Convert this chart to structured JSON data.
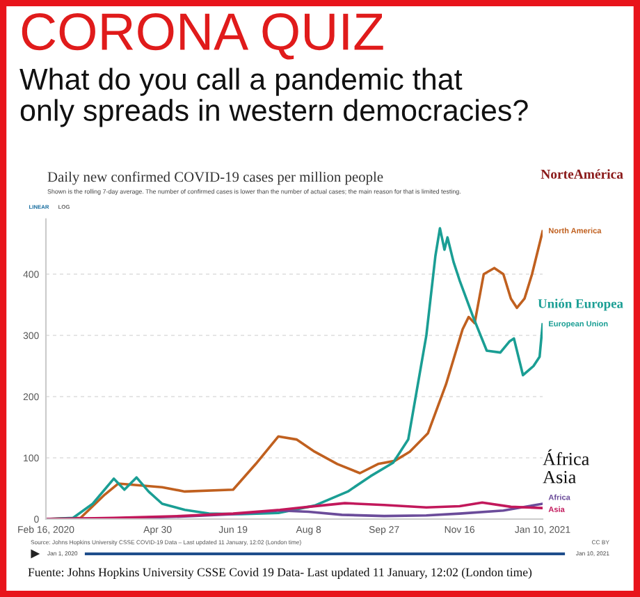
{
  "chart_data": {
    "type": "line",
    "title": "CORONA QUIZ",
    "subtitle": "What do you call a pandemic that\nonly spreads in western democracies?",
    "xlim": [
      "2020-02-16",
      "2021-01-10"
    ],
    "xticks": [
      {
        "value": "2020-02-16",
        "label": "Feb 16, 2020"
      },
      {
        "value": "2020-04-30",
        "label": "Apr 30"
      },
      {
        "value": "2020-06-19",
        "label": "Jun 19"
      },
      {
        "value": "2020-08-08",
        "label": "Aug 8"
      },
      {
        "value": "2020-09-27",
        "label": "Sep 27"
      },
      {
        "value": "2020-11-16",
        "label": "Nov 16"
      },
      {
        "value": "2021-01-10",
        "label": "Jan 10, 2021"
      }
    ],
    "ylim": [
      0,
      490
    ],
    "yticks": [
      0,
      100,
      200,
      300,
      400
    ],
    "grid": "y",
    "series": [
      {
        "name": "North America",
        "color": "#c0601f",
        "x": [
          "2020-02-16",
          "2020-03-10",
          "2020-03-26",
          "2020-04-04",
          "2020-05-03",
          "2020-05-18",
          "2020-06-19",
          "2020-07-04",
          "2020-07-19",
          "2020-07-31",
          "2020-08-12",
          "2020-08-27",
          "2020-09-11",
          "2020-09-23",
          "2020-10-04",
          "2020-10-14",
          "2020-10-26",
          "2020-11-07",
          "2020-11-18",
          "2020-11-22",
          "2020-11-26",
          "2020-12-02",
          "2020-12-09",
          "2020-12-15",
          "2020-12-20",
          "2020-12-24",
          "2020-12-29",
          "2021-01-03",
          "2021-01-10"
        ],
        "values": [
          0,
          2,
          40,
          58,
          52,
          45,
          48,
          90,
          135,
          130,
          110,
          90,
          75,
          90,
          95,
          110,
          140,
          220,
          310,
          330,
          320,
          400,
          410,
          400,
          360,
          345,
          360,
          400,
          470
        ]
      },
      {
        "name": "European Union",
        "color": "#1a9e94",
        "x": [
          "2020-02-16",
          "2020-03-05",
          "2020-03-18",
          "2020-04-01",
          "2020-04-08",
          "2020-04-16",
          "2020-04-24",
          "2020-05-03",
          "2020-05-18",
          "2020-06-03",
          "2020-06-24",
          "2020-07-19",
          "2020-08-12",
          "2020-09-03",
          "2020-09-18",
          "2020-10-03",
          "2020-10-13",
          "2020-10-25",
          "2020-10-31",
          "2020-11-03",
          "2020-11-06",
          "2020-11-08",
          "2020-11-12",
          "2020-11-16",
          "2020-11-25",
          "2020-12-04",
          "2020-12-13",
          "2020-12-19",
          "2020-12-22",
          "2020-12-28",
          "2021-01-04",
          "2021-01-08",
          "2021-01-10"
        ],
        "values": [
          0,
          2,
          25,
          66,
          48,
          68,
          45,
          25,
          15,
          9,
          8,
          10,
          22,
          45,
          70,
          92,
          130,
          300,
          430,
          475,
          440,
          460,
          420,
          390,
          330,
          275,
          272,
          290,
          295,
          235,
          250,
          265,
          318
        ]
      },
      {
        "name": "Africa",
        "color": "#6b4c9a",
        "x": [
          "2020-02-16",
          "2020-04-01",
          "2020-05-15",
          "2020-06-19",
          "2020-07-20",
          "2020-08-08",
          "2020-08-30",
          "2020-09-27",
          "2020-10-25",
          "2020-11-16",
          "2020-12-15",
          "2021-01-10"
        ],
        "values": [
          0,
          1,
          4,
          8,
          14,
          12,
          7,
          5,
          6,
          9,
          14,
          25
        ]
      },
      {
        "name": "Asia",
        "color": "#c2185b",
        "x": [
          "2020-02-16",
          "2020-04-01",
          "2020-05-15",
          "2020-06-19",
          "2020-07-20",
          "2020-08-08",
          "2020-09-01",
          "2020-09-27",
          "2020-10-25",
          "2020-11-16",
          "2020-12-01",
          "2020-12-20",
          "2021-01-10"
        ],
        "values": [
          0,
          2,
          5,
          9,
          15,
          20,
          26,
          23,
          19,
          21,
          27,
          20,
          18
        ]
      }
    ],
    "annotations": [
      "Daily new confirmed COVID-19 cases per million people",
      "Shown is the rolling 7-day average. The number of confirmed cases is lower than the number of actual cases; the main reason for that is limited testing.",
      "LINEAR",
      "LOG",
      "Source: Johns Hopkins University CSSE COVID-19 Data – Last updated 11 January, 12:02 (London time)",
      "CC BY",
      "Jan 1, 2020",
      "Jan 10, 2021",
      "Fuente: Johns Hopkins University CSSE Covid 19 Data- Last updated 11 January, 12:02 (London time)",
      "NorteAmérica",
      "Unión Europea",
      "África",
      "Asia"
    ]
  }
}
